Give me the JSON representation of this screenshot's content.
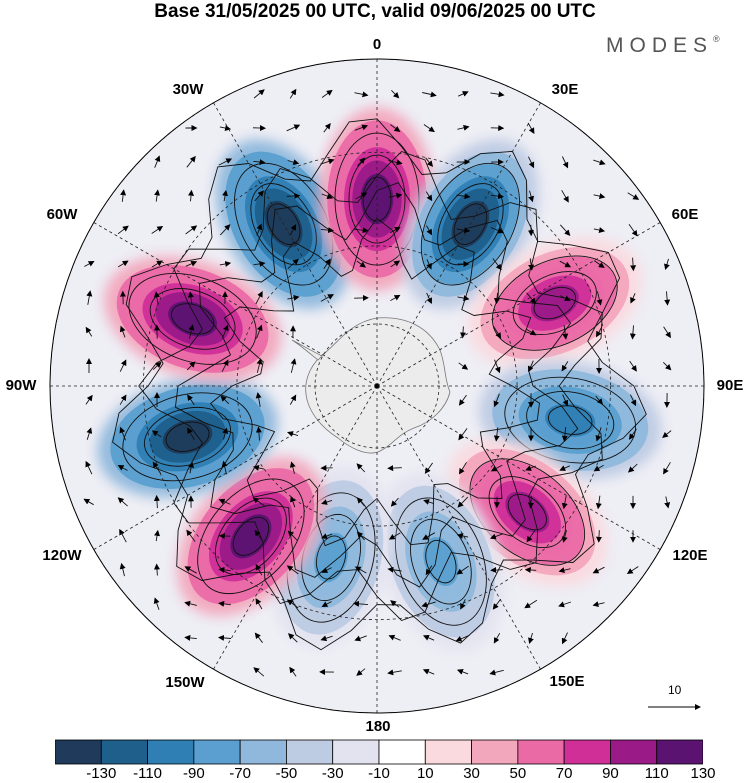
{
  "title": "Base 31/05/2025 00 UTC, valid 09/06/2025 00 UTC",
  "brand": "MODES",
  "brand_mark": "®",
  "longitude_labels": {
    "l0": "0",
    "l30e": "30E",
    "l60e": "60E",
    "l90e": "90E",
    "l120e": "120E",
    "l150e": "150E",
    "l180": "180",
    "l150w": "150W",
    "l120w": "120W",
    "l90w": "90W",
    "l60w": "60W",
    "l30w": "30W"
  },
  "reference_vector_label": "10",
  "colorbar": {
    "labels": [
      "-130",
      "-110",
      "-90",
      "-70",
      "-50",
      "-30",
      "-10",
      "10",
      "30",
      "50",
      "70",
      "90",
      "110",
      "130"
    ],
    "colors": [
      "#1f3a5a",
      "#1f5f8b",
      "#2f7fb5",
      "#5a9fcf",
      "#8fb8dc",
      "#bdcbe3",
      "#e3e3f0",
      "#ffffff",
      "#fadadf",
      "#f3a7bd",
      "#ea6aa6",
      "#d02f98",
      "#9a1a88",
      "#5a1370"
    ]
  },
  "map": {
    "pattern": "Rossby wave train of alternating positive (pink/purple) and negative (blue) height anomalies encircling Antarctica",
    "land_color": "#ececec",
    "coast_color": "#777777",
    "anomaly_centers": [
      {
        "sign": "negative",
        "lon": -30,
        "lat": -50,
        "value": -130
      },
      {
        "sign": "positive",
        "lon": 0,
        "lat": -50,
        "value": 130
      },
      {
        "sign": "negative",
        "lon": 30,
        "lat": -50,
        "value": -120
      },
      {
        "sign": "positive",
        "lon": 65,
        "lat": -48,
        "value": 100
      },
      {
        "sign": "negative",
        "lon": 100,
        "lat": -48,
        "value": -90
      },
      {
        "sign": "positive",
        "lon": 130,
        "lat": -48,
        "value": 100
      },
      {
        "sign": "negative",
        "lon": 160,
        "lat": -50,
        "value": -60
      },
      {
        "sign": "negative",
        "lon": -165,
        "lat": -52,
        "value": -60
      },
      {
        "sign": "positive",
        "lon": -140,
        "lat": -48,
        "value": 130
      },
      {
        "sign": "negative",
        "lon": -105,
        "lat": -48,
        "value": -130
      },
      {
        "sign": "positive",
        "lon": -70,
        "lat": -48,
        "value": 130
      }
    ]
  }
}
